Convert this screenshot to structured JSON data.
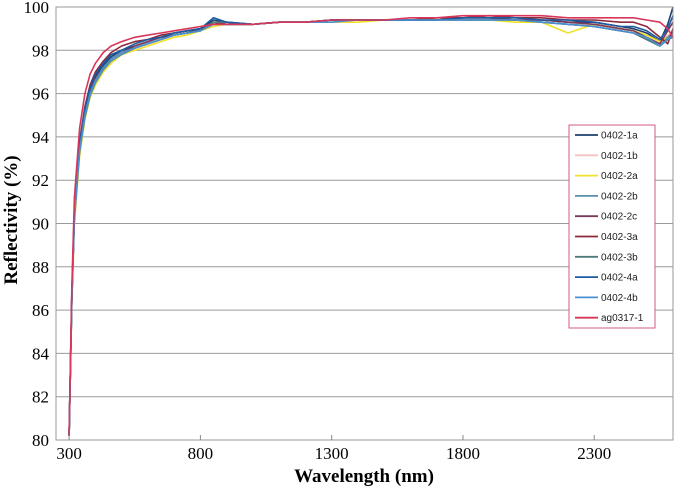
{
  "chart_data": {
    "type": "line",
    "title": "",
    "xlabel": "Wavelength (nm)",
    "ylabel": "Reflectivity (%)",
    "xlim": [
      250,
      2600
    ],
    "ylim": [
      80,
      100
    ],
    "xticks": [
      300,
      800,
      1300,
      1800,
      2300
    ],
    "yticks": [
      80,
      82,
      84,
      86,
      88,
      90,
      92,
      94,
      96,
      98,
      100
    ],
    "grid": "horizontal",
    "legend_position": "right",
    "x": [
      300,
      310,
      320,
      340,
      360,
      380,
      400,
      430,
      460,
      500,
      550,
      600,
      650,
      700,
      750,
      800,
      850,
      900,
      1000,
      1100,
      1200,
      1300,
      1400,
      1500,
      1600,
      1700,
      1800,
      1900,
      2000,
      2100,
      2200,
      2300,
      2400,
      2450,
      2500,
      2550,
      2580,
      2600
    ],
    "series": [
      {
        "name": "0402-1a",
        "color": "#1f3f6e",
        "values": [
          80.2,
          86.6,
          90.5,
          93.6,
          95.2,
          96.2,
          96.8,
          97.3,
          97.7,
          98.0,
          98.2,
          98.4,
          98.6,
          98.8,
          98.9,
          99.0,
          99.4,
          99.3,
          99.2,
          99.3,
          99.3,
          99.4,
          99.4,
          99.4,
          99.4,
          99.4,
          99.5,
          99.5,
          99.4,
          99.4,
          99.3,
          99.3,
          99.1,
          99.0,
          98.8,
          98.4,
          99.2,
          100.0
        ]
      },
      {
        "name": "0402-1b",
        "color": "#f4c2c2",
        "values": [
          80.2,
          86.4,
          90.3,
          93.4,
          95.0,
          96.0,
          96.6,
          97.2,
          97.6,
          97.9,
          98.1,
          98.3,
          98.5,
          98.7,
          98.8,
          98.9,
          99.2,
          99.2,
          99.2,
          99.3,
          99.3,
          99.3,
          99.4,
          99.4,
          99.4,
          99.4,
          99.4,
          99.4,
          99.4,
          99.3,
          99.2,
          99.2,
          99.0,
          98.9,
          98.6,
          98.3,
          98.7,
          98.8
        ]
      },
      {
        "name": "0402-2a",
        "color": "#f2e12a",
        "values": [
          80.2,
          86.2,
          90.0,
          93.1,
          94.8,
          95.8,
          96.4,
          97.0,
          97.4,
          97.8,
          98.0,
          98.2,
          98.4,
          98.6,
          98.7,
          98.9,
          99.1,
          99.2,
          99.2,
          99.3,
          99.3,
          99.3,
          99.3,
          99.4,
          99.4,
          99.4,
          99.4,
          99.4,
          99.3,
          99.3,
          98.8,
          99.2,
          99.0,
          98.9,
          98.7,
          98.4,
          98.6,
          98.7
        ]
      },
      {
        "name": "0402-2b",
        "color": "#5a8fa8",
        "values": [
          80.2,
          86.3,
          90.2,
          93.3,
          94.9,
          95.9,
          96.5,
          97.1,
          97.5,
          97.8,
          98.1,
          98.3,
          98.5,
          98.7,
          98.8,
          98.9,
          99.3,
          99.2,
          99.2,
          99.3,
          99.3,
          99.4,
          99.4,
          99.4,
          99.4,
          99.4,
          99.4,
          99.4,
          99.4,
          99.3,
          99.2,
          99.1,
          98.9,
          98.8,
          98.5,
          98.2,
          98.6,
          98.8
        ]
      },
      {
        "name": "0402-2c",
        "color": "#7a3a5a",
        "values": [
          80.2,
          86.5,
          90.4,
          93.5,
          95.1,
          96.1,
          96.7,
          97.2,
          97.6,
          97.9,
          98.2,
          98.4,
          98.6,
          98.7,
          98.8,
          99.0,
          99.3,
          99.2,
          99.2,
          99.3,
          99.3,
          99.4,
          99.4,
          99.4,
          99.4,
          99.4,
          99.5,
          99.5,
          99.4,
          99.4,
          99.3,
          99.2,
          99.0,
          98.9,
          98.6,
          98.3,
          98.9,
          99.3
        ]
      },
      {
        "name": "0402-3a",
        "color": "#8c2a3c",
        "values": [
          80.2,
          86.7,
          90.7,
          93.8,
          95.4,
          96.4,
          97.0,
          97.5,
          97.9,
          98.2,
          98.4,
          98.5,
          98.7,
          98.8,
          98.9,
          99.0,
          99.2,
          99.2,
          99.2,
          99.3,
          99.3,
          99.4,
          99.4,
          99.4,
          99.4,
          99.5,
          99.5,
          99.6,
          99.5,
          99.5,
          99.4,
          99.4,
          99.3,
          99.3,
          99.1,
          98.6,
          98.3,
          99.0
        ]
      },
      {
        "name": "0402-3b",
        "color": "#4f7a7a",
        "values": [
          80.2,
          86.4,
          90.3,
          93.4,
          95.0,
          96.0,
          96.6,
          97.2,
          97.6,
          97.9,
          98.1,
          98.3,
          98.5,
          98.7,
          98.8,
          98.9,
          99.3,
          99.3,
          99.2,
          99.3,
          99.3,
          99.4,
          99.4,
          99.4,
          99.4,
          99.4,
          99.4,
          99.4,
          99.4,
          99.3,
          99.2,
          99.1,
          98.9,
          98.8,
          98.5,
          98.2,
          98.5,
          98.6
        ]
      },
      {
        "name": "0402-4a",
        "color": "#1d5aa0",
        "values": [
          80.2,
          86.6,
          90.6,
          93.7,
          95.3,
          96.3,
          96.9,
          97.4,
          97.8,
          98.0,
          98.3,
          98.5,
          98.6,
          98.8,
          98.9,
          99.0,
          99.5,
          99.3,
          99.2,
          99.3,
          99.3,
          99.4,
          99.4,
          99.4,
          99.4,
          99.4,
          99.5,
          99.5,
          99.5,
          99.4,
          99.4,
          99.3,
          99.1,
          99.1,
          98.9,
          98.5,
          99.0,
          99.6
        ]
      },
      {
        "name": "0402-4b",
        "color": "#4a90d0",
        "values": [
          80.2,
          86.4,
          90.3,
          93.4,
          95.0,
          96.0,
          96.6,
          97.2,
          97.6,
          97.9,
          98.1,
          98.3,
          98.5,
          98.7,
          98.8,
          98.9,
          99.2,
          99.2,
          99.2,
          99.3,
          99.3,
          99.3,
          99.4,
          99.4,
          99.4,
          99.4,
          99.4,
          99.4,
          99.4,
          99.3,
          99.2,
          99.1,
          98.9,
          98.8,
          98.6,
          98.2,
          98.5,
          98.7
        ]
      },
      {
        "name": "ag0317-1",
        "color": "#d8365a",
        "values": [
          80.2,
          87.0,
          91.2,
          94.4,
          96.0,
          96.9,
          97.4,
          97.9,
          98.2,
          98.4,
          98.6,
          98.7,
          98.8,
          98.9,
          99.0,
          99.1,
          99.2,
          99.2,
          99.2,
          99.3,
          99.3,
          99.4,
          99.4,
          99.4,
          99.5,
          99.5,
          99.6,
          99.6,
          99.6,
          99.6,
          99.5,
          99.5,
          99.5,
          99.5,
          99.4,
          99.3,
          99.0,
          98.6
        ]
      }
    ]
  }
}
